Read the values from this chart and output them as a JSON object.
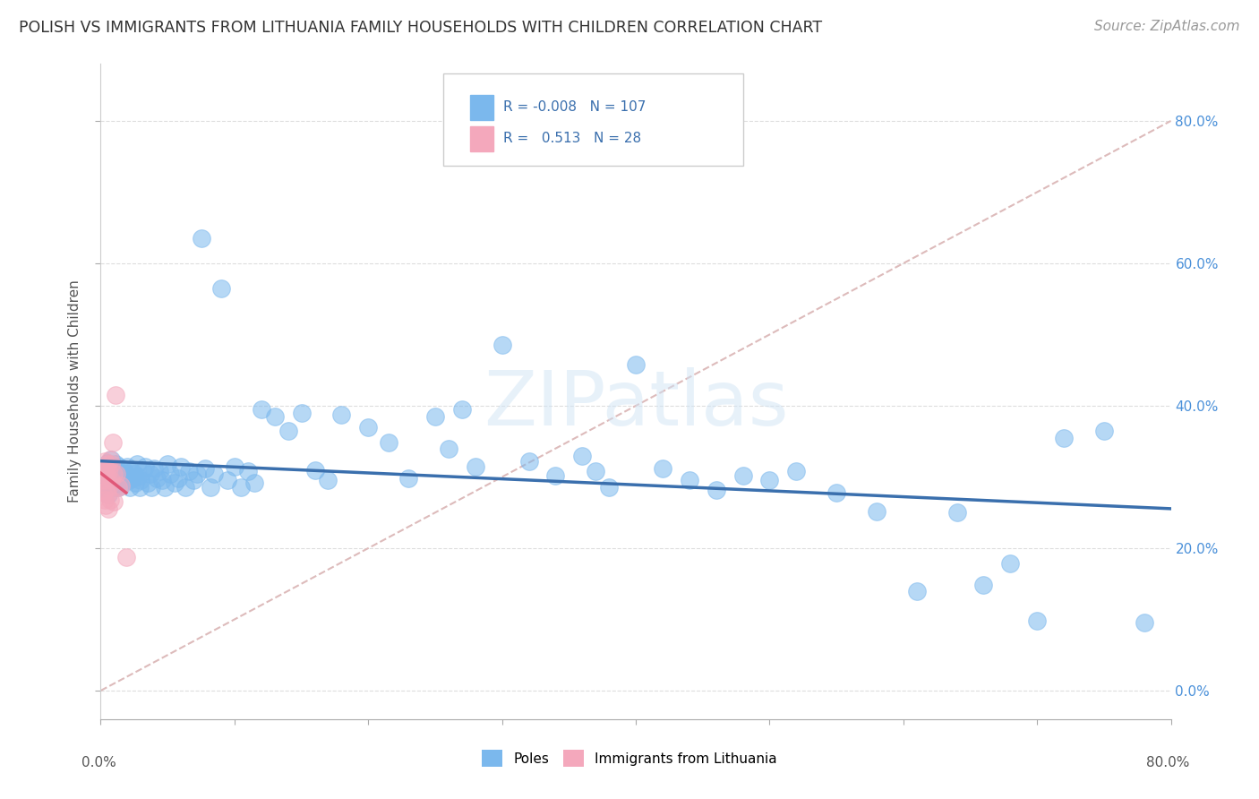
{
  "title": "POLISH VS IMMIGRANTS FROM LITHUANIA FAMILY HOUSEHOLDS WITH CHILDREN CORRELATION CHART",
  "source": "Source: ZipAtlas.com",
  "ylabel": "Family Households with Children",
  "legend_entries": [
    "Poles",
    "Immigrants from Lithuania"
  ],
  "R_blue": -0.008,
  "N_blue": 107,
  "R_pink": 0.513,
  "N_pink": 28,
  "blue_color": "#7BB8ED",
  "pink_color": "#F4A8BC",
  "blue_line_color": "#3A6FAD",
  "pink_line_color": "#E05878",
  "diag_color": "#DDBBBB",
  "xlim": [
    0.0,
    0.8
  ],
  "ylim": [
    -0.04,
    0.88
  ],
  "ytick_vals": [
    0.0,
    0.2,
    0.4,
    0.6,
    0.8
  ],
  "watermark": "ZIPatlas",
  "background_color": "#FFFFFF",
  "grid_color": "#DDDDDD",
  "title_fontsize": 12.5,
  "axis_label_fontsize": 11,
  "tick_fontsize": 11,
  "legend_fontsize": 11,
  "source_fontsize": 11,
  "blue_x": [
    0.002,
    0.003,
    0.004,
    0.005,
    0.005,
    0.006,
    0.006,
    0.007,
    0.007,
    0.008,
    0.008,
    0.009,
    0.009,
    0.01,
    0.01,
    0.01,
    0.011,
    0.011,
    0.012,
    0.012,
    0.013,
    0.013,
    0.014,
    0.014,
    0.015,
    0.015,
    0.016,
    0.017,
    0.018,
    0.019,
    0.02,
    0.021,
    0.022,
    0.023,
    0.024,
    0.025,
    0.026,
    0.027,
    0.028,
    0.029,
    0.03,
    0.032,
    0.033,
    0.035,
    0.037,
    0.038,
    0.04,
    0.042,
    0.044,
    0.046,
    0.048,
    0.05,
    0.052,
    0.055,
    0.058,
    0.06,
    0.063,
    0.066,
    0.069,
    0.072,
    0.075,
    0.078,
    0.082,
    0.085,
    0.09,
    0.095,
    0.1,
    0.105,
    0.11,
    0.115,
    0.12,
    0.13,
    0.14,
    0.15,
    0.16,
    0.17,
    0.18,
    0.2,
    0.215,
    0.23,
    0.25,
    0.26,
    0.27,
    0.28,
    0.3,
    0.32,
    0.34,
    0.36,
    0.37,
    0.38,
    0.4,
    0.42,
    0.44,
    0.46,
    0.48,
    0.5,
    0.52,
    0.55,
    0.58,
    0.61,
    0.64,
    0.66,
    0.68,
    0.7,
    0.72,
    0.75,
    0.78
  ],
  "blue_y": [
    0.295,
    0.31,
    0.285,
    0.3,
    0.32,
    0.29,
    0.275,
    0.305,
    0.315,
    0.295,
    0.325,
    0.288,
    0.308,
    0.3,
    0.312,
    0.285,
    0.298,
    0.318,
    0.292,
    0.308,
    0.302,
    0.285,
    0.315,
    0.295,
    0.305,
    0.288,
    0.295,
    0.31,
    0.298,
    0.305,
    0.315,
    0.295,
    0.285,
    0.308,
    0.298,
    0.305,
    0.292,
    0.318,
    0.3,
    0.285,
    0.295,
    0.308,
    0.315,
    0.292,
    0.305,
    0.285,
    0.312,
    0.298,
    0.308,
    0.295,
    0.285,
    0.318,
    0.305,
    0.292,
    0.298,
    0.315,
    0.285,
    0.308,
    0.295,
    0.305,
    0.635,
    0.312,
    0.285,
    0.305,
    0.565,
    0.295,
    0.315,
    0.285,
    0.308,
    0.292,
    0.395,
    0.385,
    0.365,
    0.39,
    0.31,
    0.295,
    0.388,
    0.37,
    0.348,
    0.298,
    0.385,
    0.34,
    0.395,
    0.315,
    0.485,
    0.322,
    0.302,
    0.33,
    0.308,
    0.285,
    0.458,
    0.312,
    0.295,
    0.282,
    0.302,
    0.295,
    0.308,
    0.278,
    0.252,
    0.14,
    0.25,
    0.148,
    0.178,
    0.098,
    0.355,
    0.365,
    0.095
  ],
  "pink_x": [
    0.001,
    0.002,
    0.002,
    0.003,
    0.003,
    0.003,
    0.004,
    0.004,
    0.004,
    0.004,
    0.005,
    0.005,
    0.005,
    0.006,
    0.006,
    0.006,
    0.007,
    0.007,
    0.008,
    0.008,
    0.009,
    0.01,
    0.01,
    0.011,
    0.012,
    0.013,
    0.015,
    0.019
  ],
  "pink_y": [
    0.295,
    0.31,
    0.278,
    0.305,
    0.268,
    0.322,
    0.295,
    0.315,
    0.28,
    0.26,
    0.3,
    0.318,
    0.275,
    0.308,
    0.285,
    0.255,
    0.325,
    0.268,
    0.318,
    0.295,
    0.348,
    0.305,
    0.265,
    0.415,
    0.305,
    0.285,
    0.288,
    0.188
  ]
}
